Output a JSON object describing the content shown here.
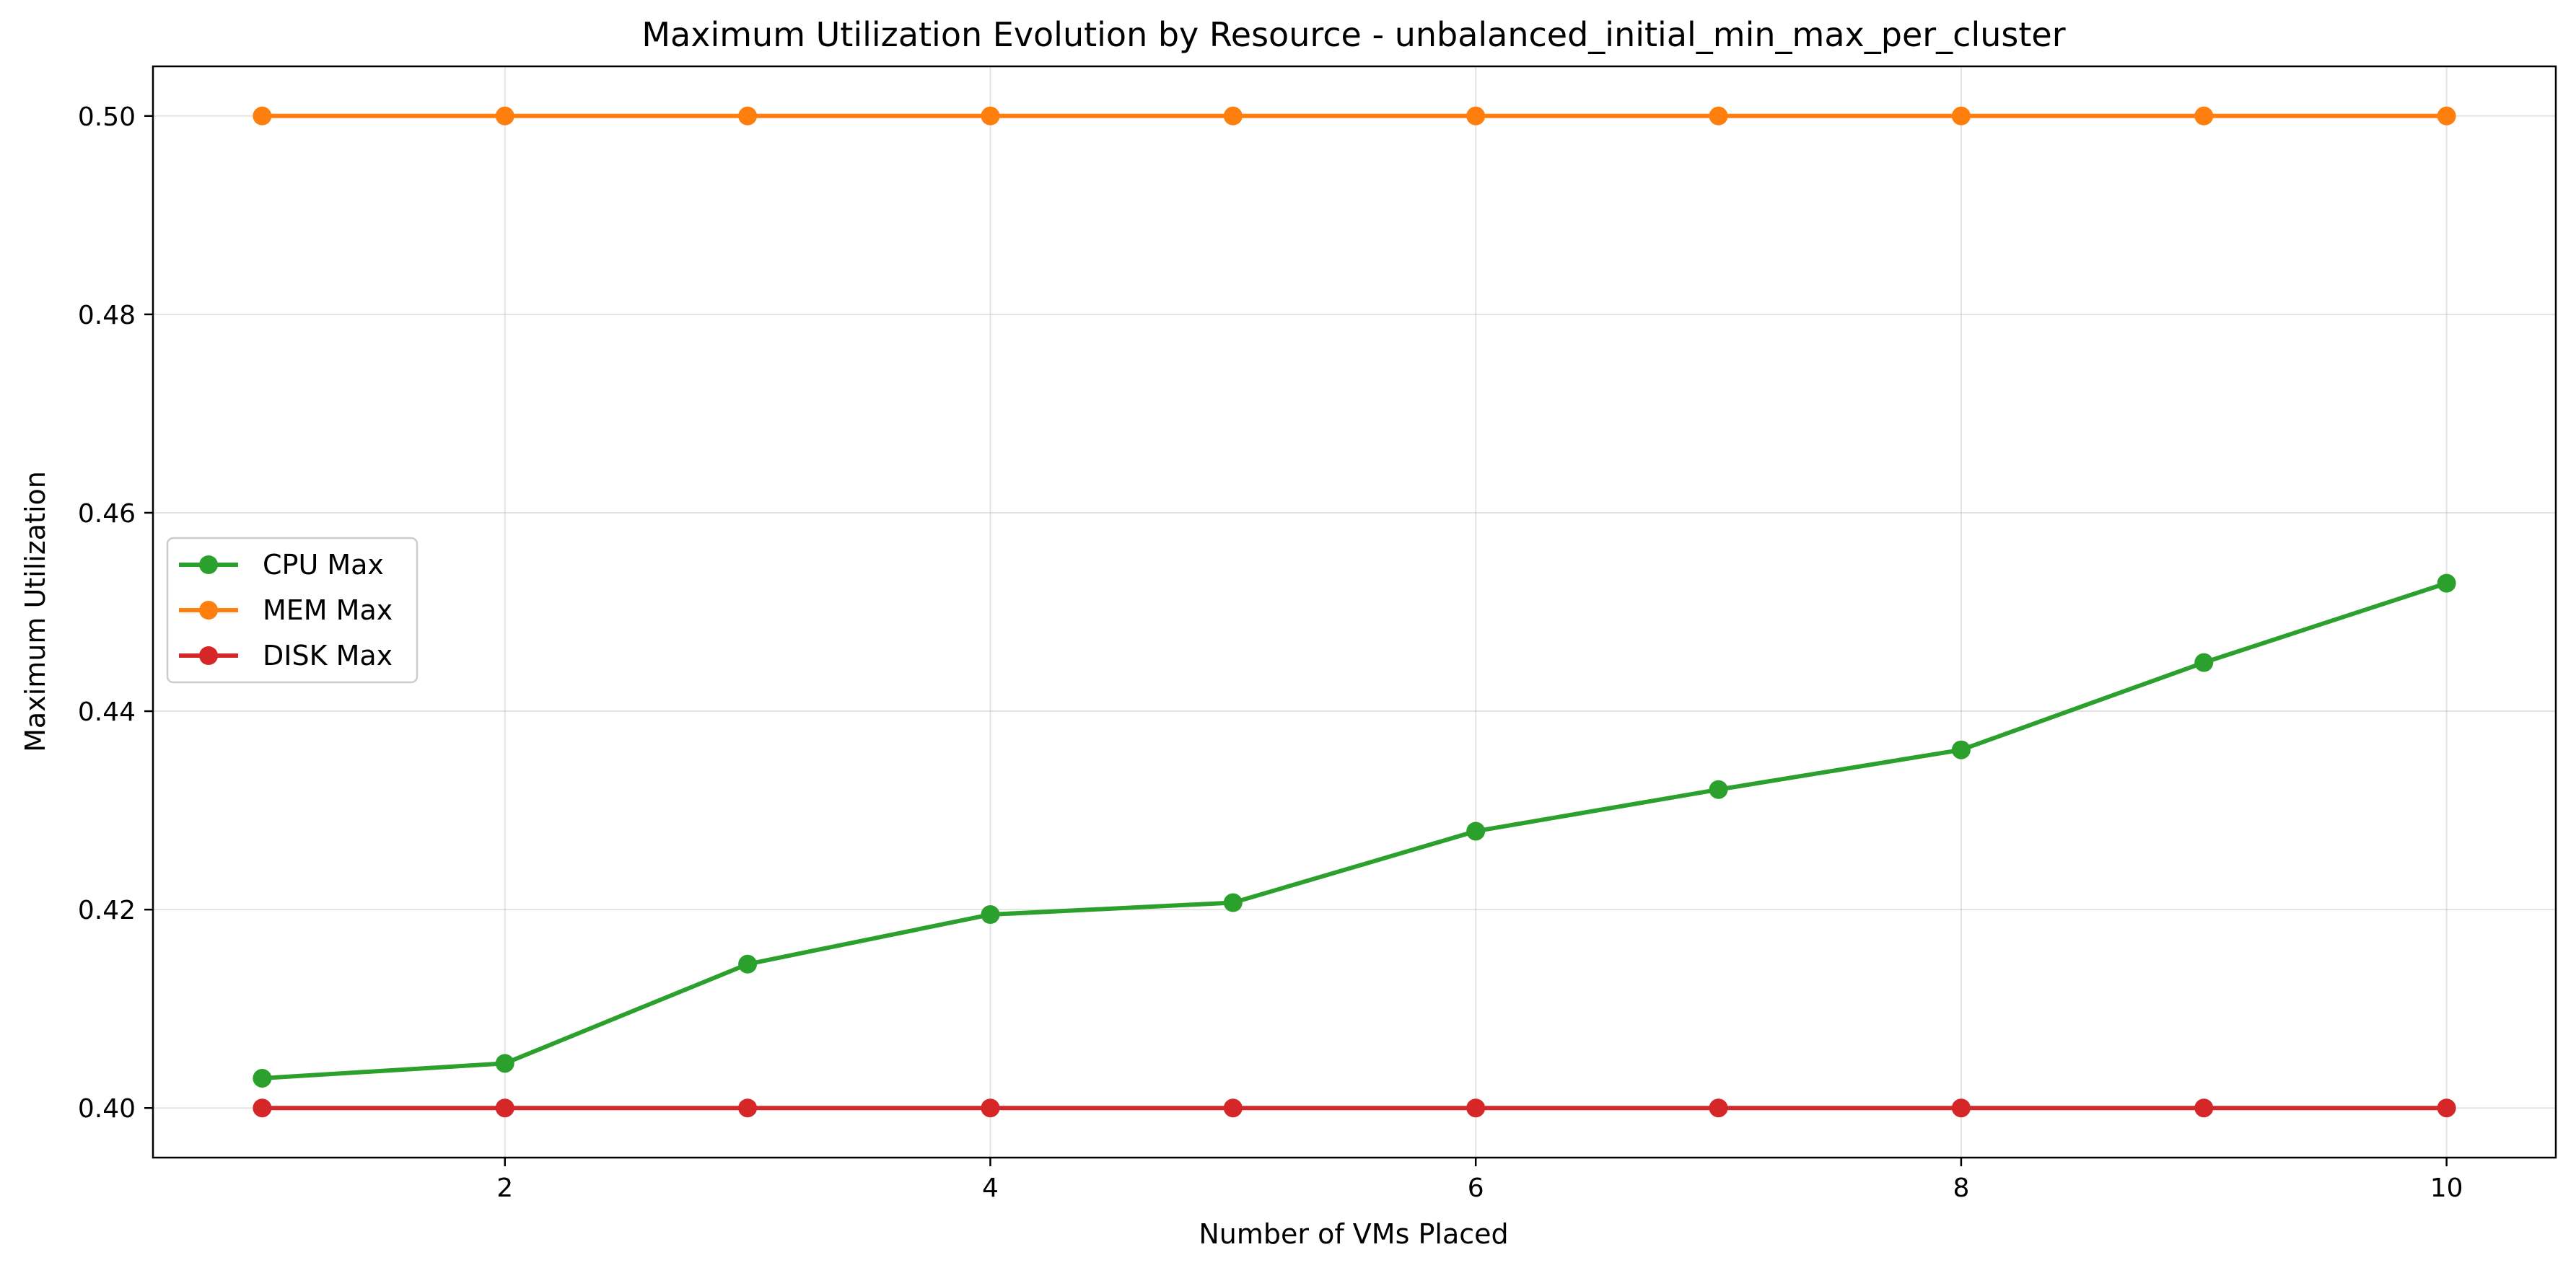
{
  "chart_data": {
    "type": "line",
    "title": "Maximum Utilization Evolution by Resource - unbalanced_initial_min_max_per_cluster",
    "xlabel": "Number of VMs Placed",
    "ylabel": "Maximum Utilization",
    "xlim": [
      0.55,
      10.45
    ],
    "ylim": [
      0.395,
      0.505
    ],
    "x_ticks": [
      2,
      4,
      6,
      8,
      10
    ],
    "y_ticks": [
      0.4,
      0.42,
      0.44,
      0.46,
      0.48,
      0.5
    ],
    "y_tick_labels": [
      "0.40",
      "0.42",
      "0.44",
      "0.46",
      "0.48",
      "0.50"
    ],
    "grid": true,
    "legend_position": "center-left",
    "x": [
      1,
      2,
      3,
      4,
      5,
      6,
      7,
      8,
      9,
      10
    ],
    "series": [
      {
        "name": "CPU Max",
        "color": "#2ca02c",
        "marker": "circle",
        "values": [
          0.403,
          0.4045,
          0.4145,
          0.4195,
          0.4207,
          0.4279,
          0.4321,
          0.4361,
          0.4449,
          0.4529
        ]
      },
      {
        "name": "MEM Max",
        "color": "#ff7f0e",
        "marker": "circle",
        "values": [
          0.5,
          0.5,
          0.5,
          0.5,
          0.5,
          0.5,
          0.5,
          0.5,
          0.5,
          0.5
        ]
      },
      {
        "name": "DISK Max",
        "color": "#d62728",
        "marker": "circle",
        "values": [
          0.4,
          0.4,
          0.4,
          0.4,
          0.4,
          0.4,
          0.4,
          0.4,
          0.4,
          0.4
        ]
      }
    ]
  }
}
